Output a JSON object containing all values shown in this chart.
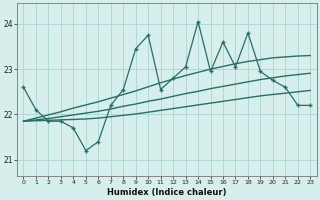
{
  "title": "",
  "xlabel": "Humidex (Indice chaleur)",
  "bg_color": "#d6eeec",
  "grid_color": "#b0d8d4",
  "line_color": "#2a6e63",
  "x_data": [
    0,
    1,
    2,
    3,
    4,
    5,
    6,
    7,
    8,
    9,
    10,
    11,
    12,
    13,
    14,
    15,
    16,
    17,
    18,
    19,
    20,
    21,
    22,
    23
  ],
  "y_main": [
    22.6,
    22.1,
    21.85,
    21.85,
    21.7,
    21.2,
    21.4,
    22.2,
    22.55,
    23.45,
    23.75,
    22.55,
    22.8,
    23.05,
    24.05,
    22.95,
    23.6,
    23.05,
    23.8,
    22.95,
    22.75,
    22.6,
    22.2,
    22.2
  ],
  "y_line1": [
    21.85,
    21.86,
    21.87,
    21.88,
    21.89,
    21.9,
    21.92,
    21.95,
    21.98,
    22.01,
    22.05,
    22.09,
    22.13,
    22.17,
    22.21,
    22.25,
    22.29,
    22.33,
    22.37,
    22.41,
    22.44,
    22.47,
    22.5,
    22.53
  ],
  "y_line2": [
    21.85,
    21.88,
    21.91,
    21.95,
    21.99,
    22.03,
    22.07,
    22.12,
    22.18,
    22.23,
    22.29,
    22.34,
    22.4,
    22.46,
    22.51,
    22.57,
    22.62,
    22.67,
    22.72,
    22.77,
    22.81,
    22.85,
    22.88,
    22.91
  ],
  "y_line3": [
    21.85,
    21.92,
    21.99,
    22.06,
    22.14,
    22.21,
    22.28,
    22.36,
    22.44,
    22.52,
    22.61,
    22.7,
    22.78,
    22.86,
    22.93,
    23.0,
    23.06,
    23.12,
    23.17,
    23.21,
    23.25,
    23.27,
    23.29,
    23.3
  ],
  "yticks": [
    21,
    22,
    23
  ],
  "ytick_top": 24,
  "ylim": [
    20.65,
    24.45
  ],
  "xlim": [
    -0.5,
    23.5
  ],
  "xticks": [
    0,
    1,
    2,
    3,
    4,
    5,
    6,
    7,
    8,
    9,
    10,
    11,
    12,
    13,
    14,
    15,
    16,
    17,
    18,
    19,
    20,
    21,
    22,
    23
  ]
}
